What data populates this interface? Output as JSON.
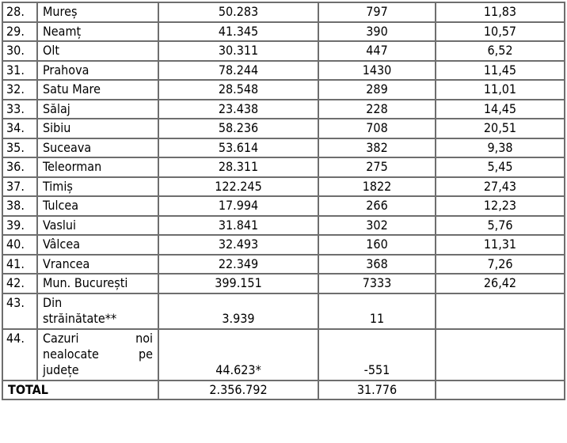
{
  "rows": [
    {
      "no": "28.",
      "name": "Mureș",
      "cases": "50.283",
      "new": "797",
      "rate": "11,83"
    },
    {
      "no": "29.",
      "name": "Neamț",
      "cases": "41.345",
      "new": "390",
      "rate": "10,57"
    },
    {
      "no": "30.",
      "name": "Olt",
      "cases": "30.311",
      "new": "447",
      "rate": "6,52"
    },
    {
      "no": "31.",
      "name": "Prahova",
      "cases": "78.244",
      "new": "1430",
      "rate": "11,45"
    },
    {
      "no": "32.",
      "name": "Satu Mare",
      "cases": "28.548",
      "new": "289",
      "rate": "11,01"
    },
    {
      "no": "33.",
      "name": "Sălaj",
      "cases": "23.438",
      "new": "228",
      "rate": "14,45"
    },
    {
      "no": "34.",
      "name": "Sibiu",
      "cases": "58.236",
      "new": "708",
      "rate": "20,51"
    },
    {
      "no": "35.",
      "name": "Suceava",
      "cases": "53.614",
      "new": "382",
      "rate": "9,38"
    },
    {
      "no": "36.",
      "name": "Teleorman",
      "cases": "28.311",
      "new": "275",
      "rate": "5,45"
    },
    {
      "no": "37.",
      "name": "Timiș",
      "cases": "122.245",
      "new": "1822",
      "rate": "27,43"
    },
    {
      "no": "38.",
      "name": "Tulcea",
      "cases": "17.994",
      "new": "266",
      "rate": "12,23"
    },
    {
      "no": "39.",
      "name": "Vaslui",
      "cases": "31.841",
      "new": "302",
      "rate": "5,76"
    },
    {
      "no": "40.",
      "name": "Vâlcea",
      "cases": "32.493",
      "new": "160",
      "rate": "11,31"
    },
    {
      "no": "41.",
      "name": "Vrancea",
      "cases": "22.349",
      "new": "368",
      "rate": "7,26"
    },
    {
      "no": "42.",
      "name": "Mun. București",
      "cases": "399.151",
      "new": "7333",
      "rate": "26,42"
    }
  ],
  "abroad": {
    "no": "43.",
    "name_line1": "Din",
    "name_line2": "străinătate**",
    "cases": "3.939",
    "new": "11"
  },
  "unallocated": {
    "no": "44.",
    "w1": "Cazuri",
    "w2": "noi",
    "w3": "nealocate",
    "w4": "pe",
    "w5": "județe",
    "cases": "44.623*",
    "new": "-551"
  },
  "total": {
    "label": "TOTAL",
    "cases": "2.356.792",
    "new": "31.776"
  }
}
